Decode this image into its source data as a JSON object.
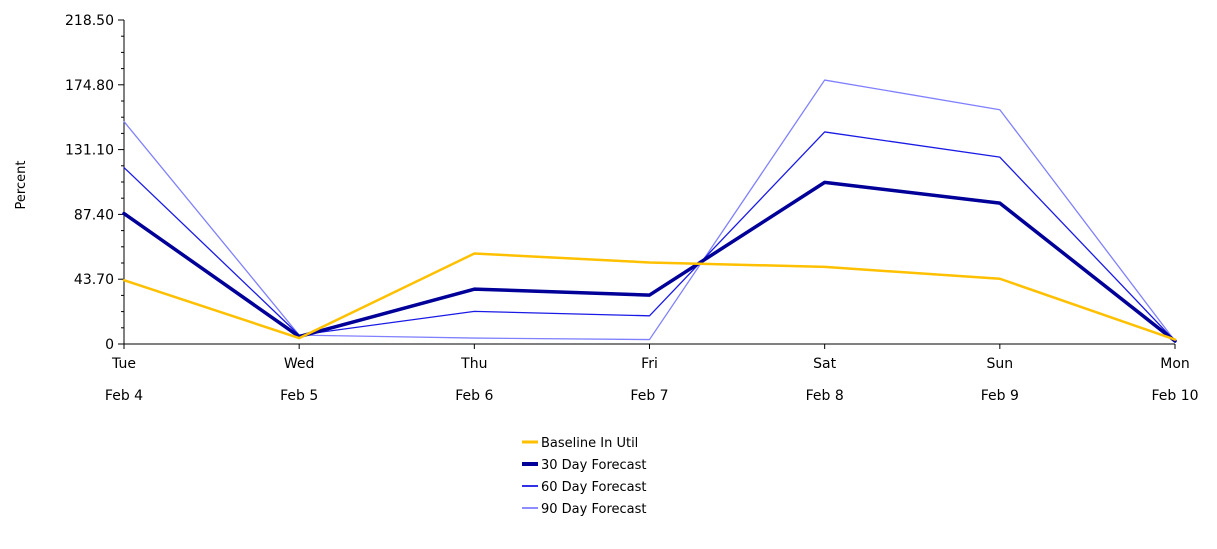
{
  "chart_data": {
    "type": "line",
    "title": "",
    "xlabel": "",
    "ylabel": "Percent",
    "ylim": [
      0,
      218.5
    ],
    "yticks": [
      "0",
      "43.70",
      "87.40",
      "131.10",
      "174.80",
      "218.50"
    ],
    "categories": [
      {
        "day": "Tue",
        "date": "Feb 4"
      },
      {
        "day": "Wed",
        "date": "Feb 5"
      },
      {
        "day": "Thu",
        "date": "Feb 6"
      },
      {
        "day": "Fri",
        "date": "Feb 7"
      },
      {
        "day": "Sat",
        "date": "Feb 8"
      },
      {
        "day": "Sun",
        "date": "Feb 9"
      },
      {
        "day": "Mon",
        "date": "Feb 10"
      }
    ],
    "legend_position": "bottom-center",
    "series": [
      {
        "name": "Baseline In Util",
        "color": "#ffc000",
        "weight": "medium",
        "values": [
          43,
          4,
          61,
          55,
          52,
          44,
          3
        ]
      },
      {
        "name": "30 Day Forecast",
        "color": "#000099",
        "weight": "thick",
        "values": [
          88,
          5,
          37,
          33,
          109,
          95,
          2
        ]
      },
      {
        "name": "60 Day Forecast",
        "color": "#1a1ae6",
        "weight": "thin",
        "values": [
          119,
          6,
          22,
          19,
          143,
          126,
          2
        ]
      },
      {
        "name": "90 Day Forecast",
        "color": "#8080ff",
        "weight": "thin",
        "values": [
          150,
          6,
          4,
          3,
          178,
          158,
          2
        ]
      }
    ]
  }
}
